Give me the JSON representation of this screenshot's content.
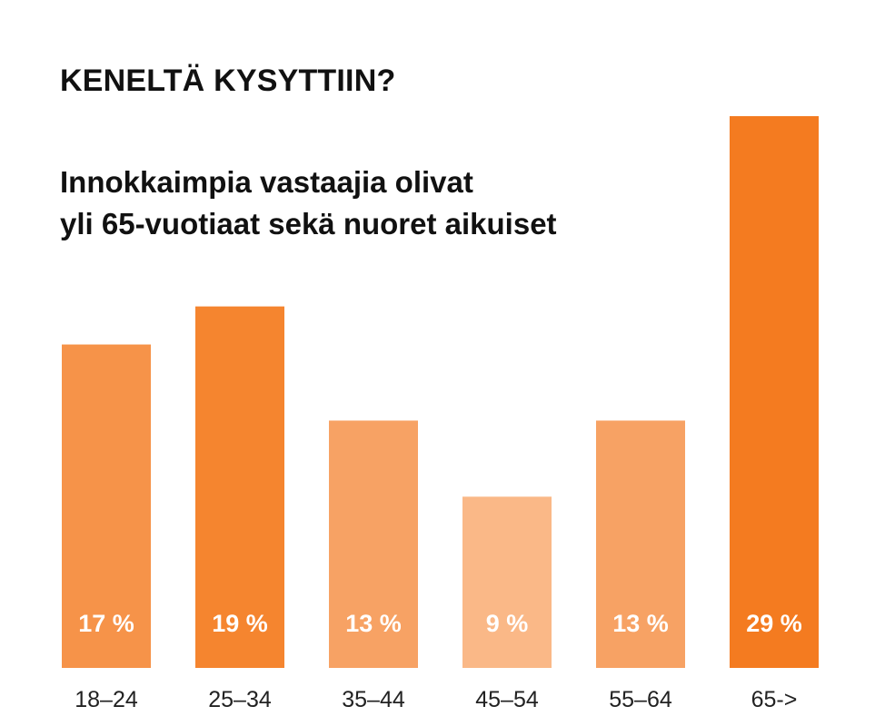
{
  "header": {
    "title": "KENELTÄ KYSYTTIIN?",
    "subtitle_line1": "Innokkaimpia vastaajia olivat",
    "subtitle_line2": "yli 65-vuotiaat sekä nuoret aikuiset"
  },
  "chart_data": {
    "type": "bar",
    "title": "KENELTÄ KYSYTTIIN?",
    "subtitle": "Innokkaimpia vastaajia olivat yli 65-vuotiaat sekä nuoret aikuiset",
    "categories": [
      "18‒24",
      "25‒34",
      "35‒44",
      "45‒54",
      "55‒64",
      "65->"
    ],
    "values": [
      17,
      19,
      13,
      9,
      13,
      29
    ],
    "value_labels": [
      "17 %",
      "19 %",
      "13 %",
      "9 %",
      "13 %",
      "29 %"
    ],
    "colors": [
      "#f69349",
      "#f5852f",
      "#f7a264",
      "#fab887",
      "#f7a264",
      "#f47b20"
    ],
    "xlabel": "",
    "ylabel": "",
    "unit": "%",
    "ylim": [
      0,
      29
    ],
    "grid": false,
    "legend": "none"
  }
}
